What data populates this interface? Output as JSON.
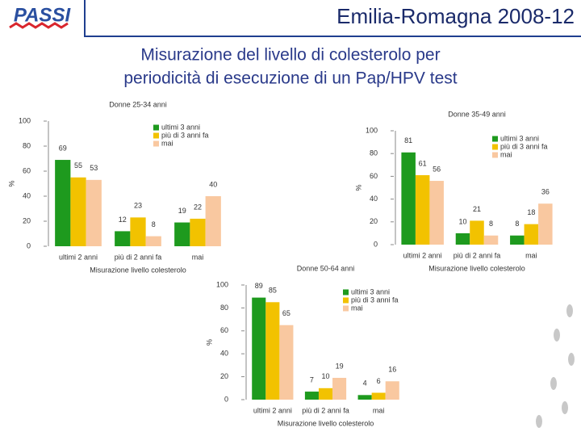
{
  "logo": "PASSI",
  "header": "Emilia-Romagna 2008-12",
  "title": [
    "Misurazione del livello di colesterolo per",
    "periodicità di esecuzione di un Pap/HPV test"
  ],
  "chart_data": [
    {
      "type": "bar",
      "title": "Donne 25-34 anni",
      "x_label": "Misurazione livello colesterolo",
      "y_label": "%",
      "categories": [
        "ultimi 2 anni",
        "più di 2 anni fa",
        "mai"
      ],
      "series": [
        {
          "name": "ultimi 3 anni",
          "color": "#1e9a1e",
          "values": [
            69,
            12,
            19
          ]
        },
        {
          "name": "più di 3 anni fa",
          "color": "#f2c200",
          "values": [
            55,
            23,
            22
          ]
        },
        {
          "name": "mai",
          "color": "#f9c8a0",
          "values": [
            53,
            8,
            40
          ]
        }
      ],
      "ylim": [
        0,
        100
      ],
      "yticks": [
        0,
        20,
        40,
        60,
        80,
        100
      ]
    },
    {
      "type": "bar",
      "title": "Donne 35-49 anni",
      "x_label": "Misurazione livello colesterolo",
      "y_label": "%",
      "categories": [
        "ultimi 2 anni",
        "più di 2 anni fa",
        "mai"
      ],
      "series": [
        {
          "name": "ultimi 3 anni",
          "color": "#1e9a1e",
          "values": [
            81,
            10,
            8
          ]
        },
        {
          "name": "più di 3 anni fa",
          "color": "#f2c200",
          "values": [
            61,
            21,
            18
          ]
        },
        {
          "name": "mai",
          "color": "#f9c8a0",
          "values": [
            56,
            8,
            36
          ]
        }
      ],
      "ylim": [
        0,
        100
      ],
      "yticks": [
        0,
        20,
        40,
        60,
        80,
        100
      ]
    },
    {
      "type": "bar",
      "title": "Donne 50-64 anni",
      "x_label": "Misurazione livello colesterolo",
      "y_label": "%",
      "categories": [
        "ultimi 2 anni",
        "più di 2 anni fa",
        "mai"
      ],
      "series": [
        {
          "name": "ultimi 3 anni",
          "color": "#1e9a1e",
          "values": [
            89,
            7,
            4
          ]
        },
        {
          "name": "più di 3 anni fa",
          "color": "#f2c200",
          "values": [
            85,
            10,
            6
          ]
        },
        {
          "name": "mai",
          "color": "#f9c8a0",
          "values": [
            65,
            19,
            16
          ]
        }
      ],
      "ylim": [
        0,
        100
      ],
      "yticks": [
        0,
        20,
        40,
        60,
        80,
        100
      ]
    }
  ]
}
